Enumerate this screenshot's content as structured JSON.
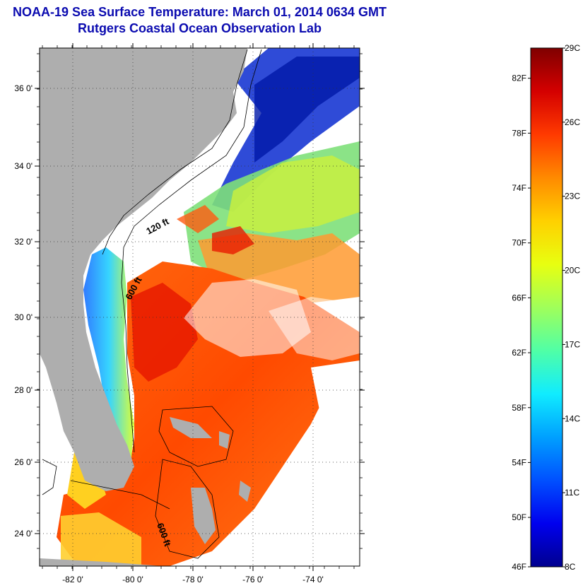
{
  "title": {
    "line1": "NOAA-19 Sea Surface Temperature:  March 01, 2014 0634 GMT",
    "line2": "Rutgers Coastal Ocean Observation Lab"
  },
  "map": {
    "lat_ticks": [
      "36 0'",
      "34 0'",
      "32 0'",
      "30 0'",
      "28 0'",
      "26 0'",
      "24 0'"
    ],
    "lon_ticks": [
      "-82 0'",
      "-80 0'",
      "-78 0'",
      "-76 0'",
      "-74 0'"
    ],
    "contour_labels": [
      "120 ft",
      "600 ft",
      "600 ft"
    ],
    "land_color": "#aeaeae",
    "cloud_color": "#ffffff"
  },
  "colorbar": {
    "fahrenheit_labels": [
      "82F",
      "78F",
      "74F",
      "70F",
      "66F",
      "62F",
      "58F",
      "54F",
      "50F",
      "46F"
    ],
    "celsius_labels": [
      "29C",
      "26C",
      "23C",
      "20C",
      "17C",
      "14C",
      "11C",
      "8C"
    ],
    "colors": [
      "#7f0000",
      "#d40000",
      "#ff3a00",
      "#ff8a00",
      "#ffd000",
      "#e8ff10",
      "#a0ff5a",
      "#50ffa6",
      "#10ecff",
      "#00a0ff",
      "#0050ff",
      "#0000ee",
      "#00008f"
    ]
  }
}
